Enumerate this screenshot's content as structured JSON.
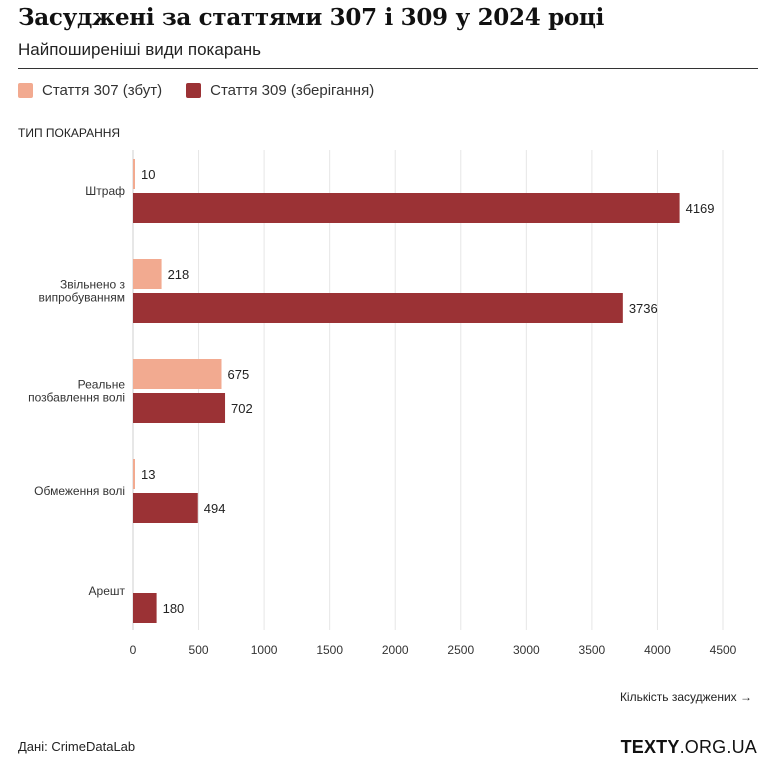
{
  "header": {
    "title": "Засуджені за статтями 307 і 309 у 2024 році",
    "subtitle": "Найпоширеніші види покарань"
  },
  "footer": {
    "source": "Дані: CrimeDataLab",
    "brand_bold": "TEXTY",
    "brand_rest": ".ORG.UA"
  },
  "chart_data": {
    "type": "bar",
    "orientation": "horizontal",
    "ylabel": "ТИП ПОКАРАННЯ",
    "xlabel": "Кількість засуджених →",
    "categories": [
      [
        "Штраф"
      ],
      [
        "Звільнено з",
        "випробуванням"
      ],
      [
        "Реальне",
        "позбавлення волі"
      ],
      [
        "Обмеження волі"
      ],
      [
        "Арешт"
      ]
    ],
    "series": [
      {
        "name": "Стаття 307 (збут)",
        "color": "#f2aa90",
        "values": [
          10,
          218,
          675,
          13,
          null
        ]
      },
      {
        "name": "Стаття 309 (зберігання)",
        "color": "#9b3235",
        "values": [
          4169,
          3736,
          702,
          494,
          180
        ]
      }
    ],
    "xlim": [
      0,
      4500
    ],
    "xticks": [
      0,
      500,
      1000,
      1500,
      2000,
      2500,
      3000,
      3500,
      4000,
      4500
    ],
    "grid": true,
    "legend_position": "top-left"
  }
}
